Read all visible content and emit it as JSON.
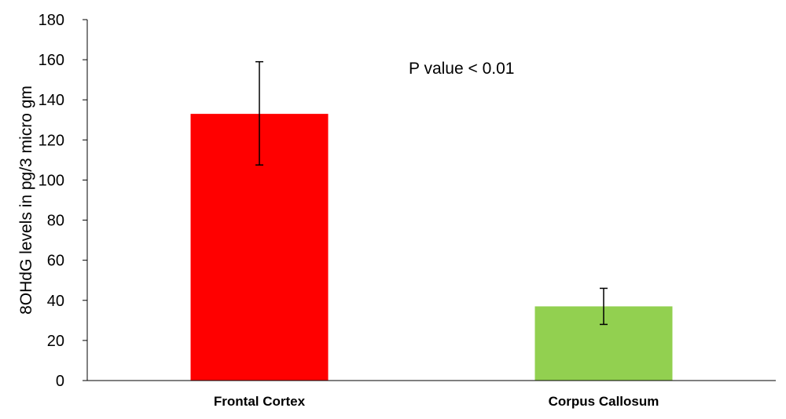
{
  "chart_data": {
    "type": "bar",
    "categories": [
      "Frontal Cortex",
      "Corpus Callosum"
    ],
    "values": [
      133,
      37
    ],
    "error_bars": [
      {
        "low": 107.5,
        "high": 159
      },
      {
        "low": 28,
        "high": 46
      }
    ],
    "colors": [
      "#ff0000",
      "#92d050"
    ],
    "title": "",
    "xlabel": "",
    "ylabel": "8OHdG levels in pg/3 micro gm",
    "ylim": [
      0,
      180
    ],
    "yticks": [
      0,
      20,
      40,
      60,
      80,
      100,
      120,
      140,
      160,
      180
    ],
    "annotation": "P value < 0.01",
    "grid": false,
    "legend": "none"
  }
}
